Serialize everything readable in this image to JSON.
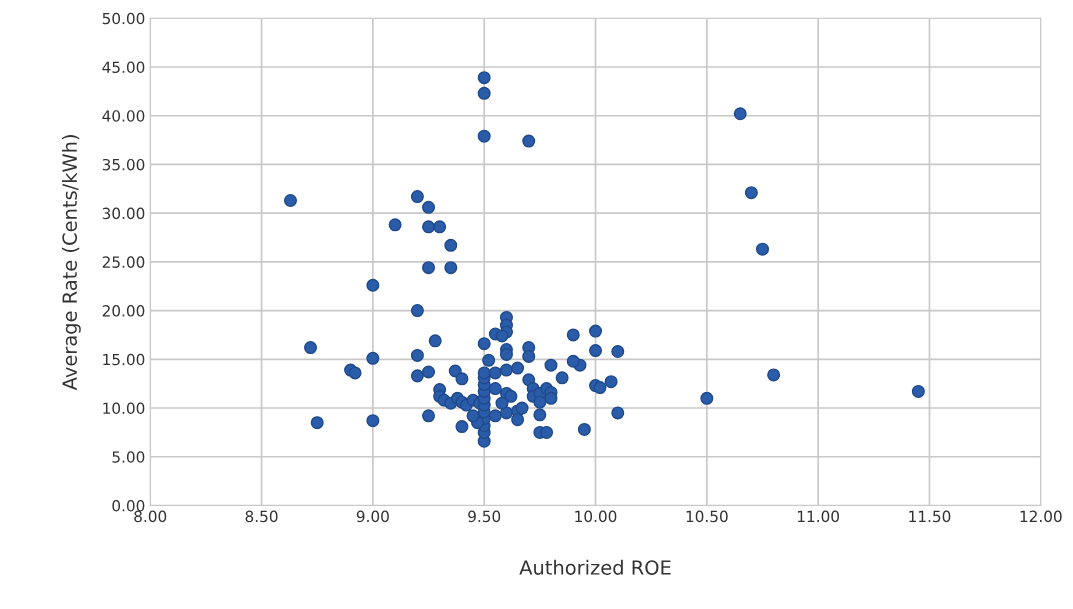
{
  "chart_data": {
    "type": "scatter",
    "xlabel": "Authorized ROE",
    "ylabel": "Average Rate (Cents/kWh)",
    "xlim": [
      8,
      12
    ],
    "ylim": [
      0,
      50
    ],
    "xticks": [
      {
        "value": 8,
        "label": "8.00"
      },
      {
        "value": 8.5,
        "label": "8.50"
      },
      {
        "value": 9,
        "label": "9.00"
      },
      {
        "value": 9.5,
        "label": "9.50"
      },
      {
        "value": 10,
        "label": "10.00"
      },
      {
        "value": 10.5,
        "label": "10.50"
      },
      {
        "value": 11,
        "label": "11.00"
      },
      {
        "value": 11.5,
        "label": "11.50"
      },
      {
        "value": 12,
        "label": "12.00"
      }
    ],
    "yticks": [
      {
        "value": 0,
        "label": "0.00"
      },
      {
        "value": 5,
        "label": "5.00"
      },
      {
        "value": 10,
        "label": "10.00"
      },
      {
        "value": 15,
        "label": "15.00"
      },
      {
        "value": 20,
        "label": "20.00"
      },
      {
        "value": 25,
        "label": "25.00"
      },
      {
        "value": 30,
        "label": "30.00"
      },
      {
        "value": 35,
        "label": "35.00"
      },
      {
        "value": 40,
        "label": "40.00"
      },
      {
        "value": 45,
        "label": "45.00"
      },
      {
        "value": 50,
        "label": "50.00"
      }
    ],
    "grid": true,
    "marker": "circle",
    "series": [
      {
        "color": "#2a5caa",
        "x": [
          8.63,
          8.72,
          8.75,
          8.9,
          8.92,
          9.0,
          9.0,
          9.0,
          9.1,
          9.2,
          9.2,
          9.2,
          9.2,
          9.25,
          9.25,
          9.3,
          9.25,
          9.35,
          9.35,
          9.25,
          9.25,
          9.28,
          9.5,
          9.5,
          9.5,
          9.7,
          10.65,
          10.7,
          10.75,
          10.8,
          10.5,
          11.45,
          9.9,
          10.0,
          10.0,
          10.1,
          9.95,
          10.1,
          10.0,
          10.02,
          10.07,
          9.93,
          9.9,
          9.85,
          9.8,
          9.75,
          9.75,
          9.78,
          9.7,
          9.7,
          9.6,
          9.6,
          9.6,
          9.55,
          9.58,
          9.5,
          9.6,
          9.6,
          9.52,
          9.5,
          9.4,
          9.37,
          9.4,
          9.3,
          9.3,
          9.32,
          9.35,
          9.38,
          9.4,
          9.42,
          9.45,
          9.48,
          9.5,
          9.5,
          9.5,
          9.5,
          9.5,
          9.5,
          9.5,
          9.5,
          9.5,
          9.5,
          9.47,
          9.45,
          9.55,
          9.6,
          9.65,
          9.55,
          9.6,
          9.65,
          9.65,
          9.6,
          9.62,
          9.7,
          9.72,
          9.72,
          9.75,
          9.78,
          9.8,
          9.8,
          9.75,
          9.67,
          9.55,
          9.58
        ],
        "values": [
          31.3,
          16.2,
          8.5,
          13.9,
          13.6,
          22.6,
          15.1,
          8.7,
          28.8,
          31.7,
          20.0,
          15.4,
          13.3,
          30.6,
          28.6,
          28.6,
          24.4,
          26.7,
          24.4,
          13.7,
          9.2,
          16.9,
          43.9,
          42.3,
          37.9,
          37.4,
          40.2,
          32.1,
          26.3,
          13.4,
          11.0,
          11.7,
          17.5,
          17.9,
          15.9,
          15.8,
          7.8,
          9.5,
          12.3,
          12.1,
          12.7,
          14.4,
          14.8,
          13.1,
          14.4,
          9.3,
          7.5,
          7.5,
          16.2,
          15.3,
          19.3,
          18.5,
          17.8,
          17.6,
          17.4,
          16.6,
          16.0,
          15.5,
          14.9,
          6.6,
          8.1,
          13.8,
          13.0,
          11.9,
          11.2,
          10.8,
          10.5,
          11.0,
          10.6,
          10.3,
          10.8,
          10.5,
          7.5,
          8.2,
          8.9,
          9.6,
          10.3,
          11.0,
          11.7,
          12.4,
          13.1,
          13.6,
          8.5,
          9.2,
          13.6,
          13.9,
          14.1,
          9.2,
          9.5,
          9.7,
          8.8,
          11.5,
          11.2,
          12.9,
          12.0,
          11.2,
          11.5,
          12.0,
          11.6,
          11.0,
          10.6,
          10.0,
          12.0,
          10.5
        ]
      }
    ]
  }
}
